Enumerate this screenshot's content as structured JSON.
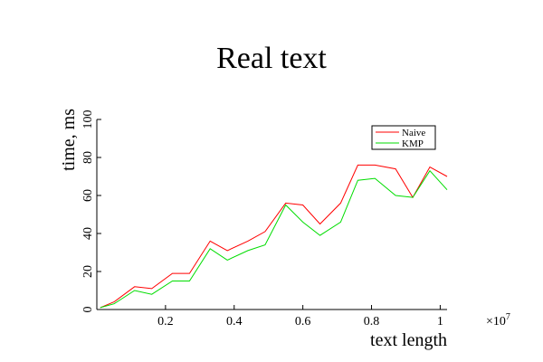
{
  "chart_data": {
    "type": "line",
    "title": "Real text",
    "xlabel": "text length",
    "ylabel": "time, ms",
    "x_multiplier": "×10",
    "x_multiplier_exp": "7",
    "xlim": [
      0,
      1.02
    ],
    "ylim": [
      0,
      100
    ],
    "x_ticks": [
      0.2,
      0.4,
      0.6,
      0.8,
      1
    ],
    "x_tick_labels": [
      "0.2",
      "0.4",
      "0.6",
      "0.8",
      "1"
    ],
    "y_ticks": [
      0,
      20,
      40,
      60,
      80,
      100
    ],
    "y_tick_labels": [
      "0",
      "20",
      "40",
      "60",
      "80",
      "100"
    ],
    "grid": false,
    "legend_position": "top-right",
    "x": [
      0.01,
      0.05,
      0.11,
      0.16,
      0.22,
      0.27,
      0.33,
      0.38,
      0.44,
      0.49,
      0.55,
      0.6,
      0.65,
      0.71,
      0.76,
      0.81,
      0.87,
      0.92,
      0.97,
      1.02
    ],
    "series": [
      {
        "name": "Naive",
        "color": "#ff0000",
        "values": [
          1,
          4,
          12,
          11,
          19,
          19,
          36,
          31,
          36,
          41,
          56,
          55,
          45,
          56,
          76,
          76,
          74,
          59,
          75,
          70
        ]
      },
      {
        "name": "KMP",
        "color": "#00dd00",
        "values": [
          1,
          3,
          10,
          8,
          15,
          15,
          32,
          26,
          31,
          34,
          55,
          46,
          39,
          46,
          68,
          69,
          60,
          59,
          73,
          63
        ]
      }
    ]
  }
}
